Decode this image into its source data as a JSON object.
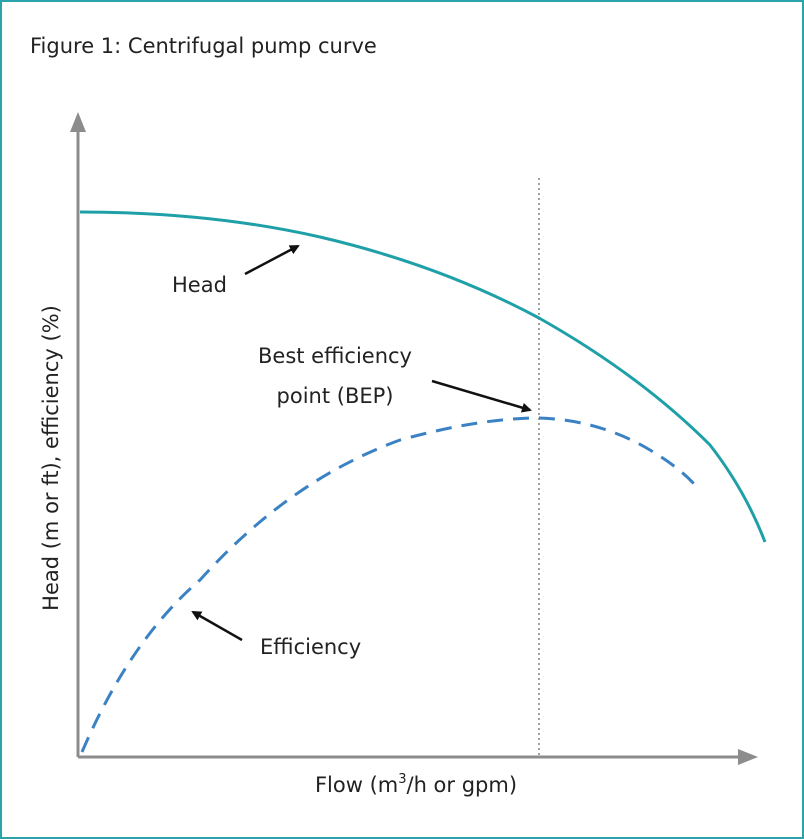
{
  "figure": {
    "title": "Figure 1: Centrifugal pump curve"
  },
  "axes": {
    "ylabel": "Head (m or ft), efficiency (%)",
    "xlabel_pre": "Flow (m",
    "xlabel_sup": "3",
    "xlabel_post": "/h or gpm)"
  },
  "annotations": {
    "head": "Head",
    "bep_line1": "Best efficiency",
    "bep_line2": "point (BEP)",
    "efficiency": "Efficiency"
  },
  "colors": {
    "head_curve": "#1fa0a8",
    "efficiency_curve": "#3b82c4",
    "axis": "#8c8c8c",
    "bep_line": "#a0a0a0",
    "frame": "#2aa3aa"
  }
}
